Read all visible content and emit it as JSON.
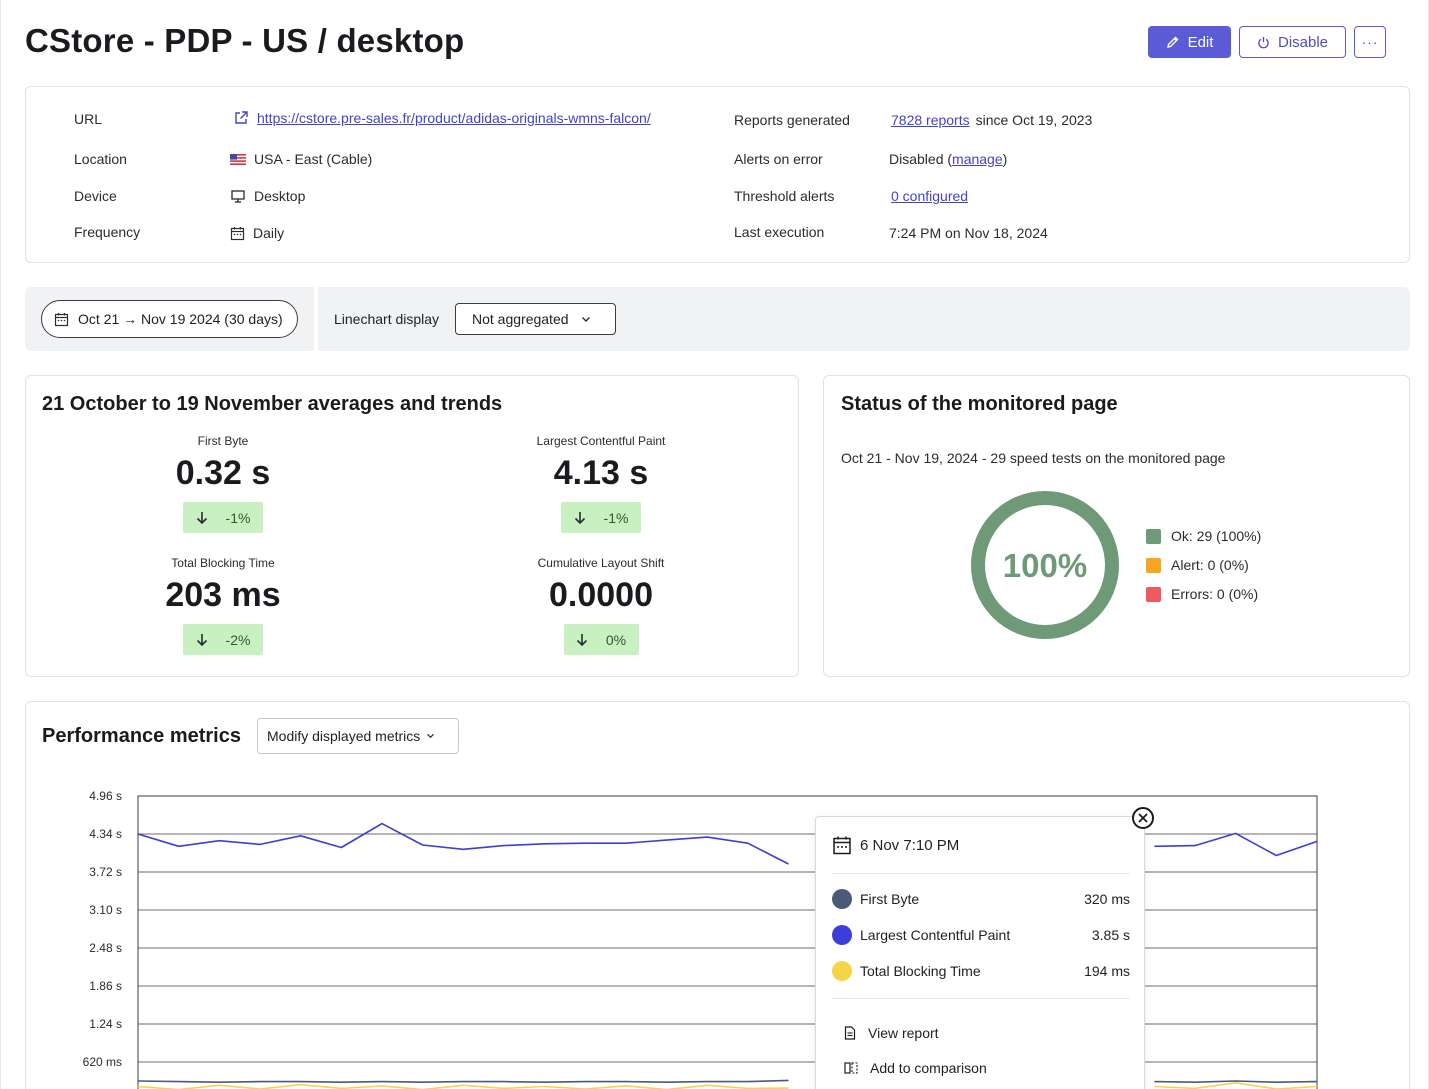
{
  "header": {
    "title": "CStore - PDP - US / desktop",
    "edit_label": "Edit",
    "disable_label": "Disable",
    "more_label": "···"
  },
  "info": {
    "url_label": "URL",
    "url_value": "https://cstore.pre-sales.fr/product/adidas-originals-wmns-falcon/",
    "location_label": "Location",
    "location_value": "USA - East (Cable)",
    "device_label": "Device",
    "device_value": "Desktop",
    "frequency_label": "Frequency",
    "frequency_value": "Daily",
    "reports_label": "Reports generated",
    "reports_link": "7828 reports",
    "reports_since": "since Oct 19, 2023",
    "alerts_label": "Alerts on error",
    "alerts_value": "Disabled (",
    "alerts_link": "manage",
    "alerts_close": ")",
    "threshold_label": "Threshold alerts",
    "threshold_link": "0 configured",
    "last_exec_label": "Last execution",
    "last_exec_value": "7:24 PM on Nov 18, 2024"
  },
  "filters": {
    "date_range": "Oct 21 → Nov 19 2024 (30 days)",
    "linechart_label": "Linechart display",
    "linechart_value": "Not aggregated"
  },
  "averages": {
    "title": "21 October to 19 November averages and trends",
    "metrics": [
      {
        "name": "First Byte",
        "value": "0.32 s",
        "trend": "-1%"
      },
      {
        "name": "Largest Contentful Paint",
        "value": "4.13 s",
        "trend": "-1%"
      },
      {
        "name": "Total Blocking Time",
        "value": "203 ms",
        "trend": "-2%"
      },
      {
        "name": "Cumulative Layout Shift",
        "value": "0.0000",
        "trend": "0%"
      }
    ]
  },
  "status": {
    "title": "Status of the monitored page",
    "subtitle": "Oct 21 - Nov 19, 2024 - 29 speed tests on the monitored page",
    "donut_label": "100%",
    "ok_fraction": 1.0,
    "colors": {
      "ok": "#6f9a78",
      "alert": "#f5a623",
      "error": "#f0595f"
    },
    "legend": [
      {
        "label": "Ok: 29 (100%)"
      },
      {
        "label": "Alert: 0 (0%)"
      },
      {
        "label": "Errors: 0 (0%)"
      }
    ]
  },
  "performance": {
    "title": "Performance metrics",
    "modify_label": "Modify displayed metrics"
  },
  "chart_data": {
    "type": "line",
    "y_tick_labels": [
      "4.96 s",
      "4.34 s",
      "3.72 s",
      "3.10 s",
      "2.48 s",
      "1.86 s",
      "1.24 s",
      "620 ms"
    ],
    "y_ticks_s": [
      4.96,
      4.34,
      3.72,
      3.1,
      2.48,
      1.86,
      1.24,
      0.62
    ],
    "ylim": [
      0,
      4.96
    ],
    "grid": true,
    "series": [
      {
        "name": "Largest Contentful Paint",
        "color": "#3d3dd9",
        "values": [
          4.34,
          4.14,
          4.23,
          4.17,
          4.31,
          4.12,
          4.51,
          4.16,
          4.09,
          4.15,
          4.18,
          4.19,
          4.19,
          4.24,
          4.29,
          4.19,
          3.85,
          null,
          null,
          null,
          null,
          null,
          null,
          null,
          null,
          4.14,
          4.15,
          4.35,
          3.99,
          4.22
        ]
      },
      {
        "name": "First Byte",
        "color": "#4a5a78",
        "values": [
          0.31,
          0.3,
          0.29,
          0.3,
          0.3,
          0.29,
          0.3,
          0.29,
          0.3,
          0.3,
          0.29,
          0.3,
          0.3,
          0.29,
          0.3,
          0.3,
          0.32,
          null,
          null,
          null,
          null,
          null,
          null,
          null,
          null,
          0.3,
          0.29,
          0.31,
          0.29,
          0.3
        ]
      },
      {
        "name": "Total Blocking Time",
        "color": "#f5d44a",
        "values": [
          0.22,
          0.17,
          0.24,
          0.18,
          0.25,
          0.19,
          0.23,
          0.17,
          0.24,
          0.19,
          0.22,
          0.18,
          0.23,
          0.17,
          0.24,
          0.19,
          0.194,
          null,
          null,
          null,
          null,
          null,
          null,
          null,
          null,
          0.22,
          0.19,
          0.28,
          0.18,
          0.22
        ]
      }
    ]
  },
  "tooltip": {
    "date": "6 Nov 7:10 PM",
    "rows": [
      {
        "name": "First Byte",
        "value": "320 ms",
        "color": "#4a5a78"
      },
      {
        "name": "Largest Contentful Paint",
        "value": "3.85 s",
        "color": "#3d3dd9"
      },
      {
        "name": "Total Blocking Time",
        "value": "194 ms",
        "color": "#f5d44a"
      }
    ],
    "view_report": "View report",
    "add_comparison": "Add to comparison"
  }
}
